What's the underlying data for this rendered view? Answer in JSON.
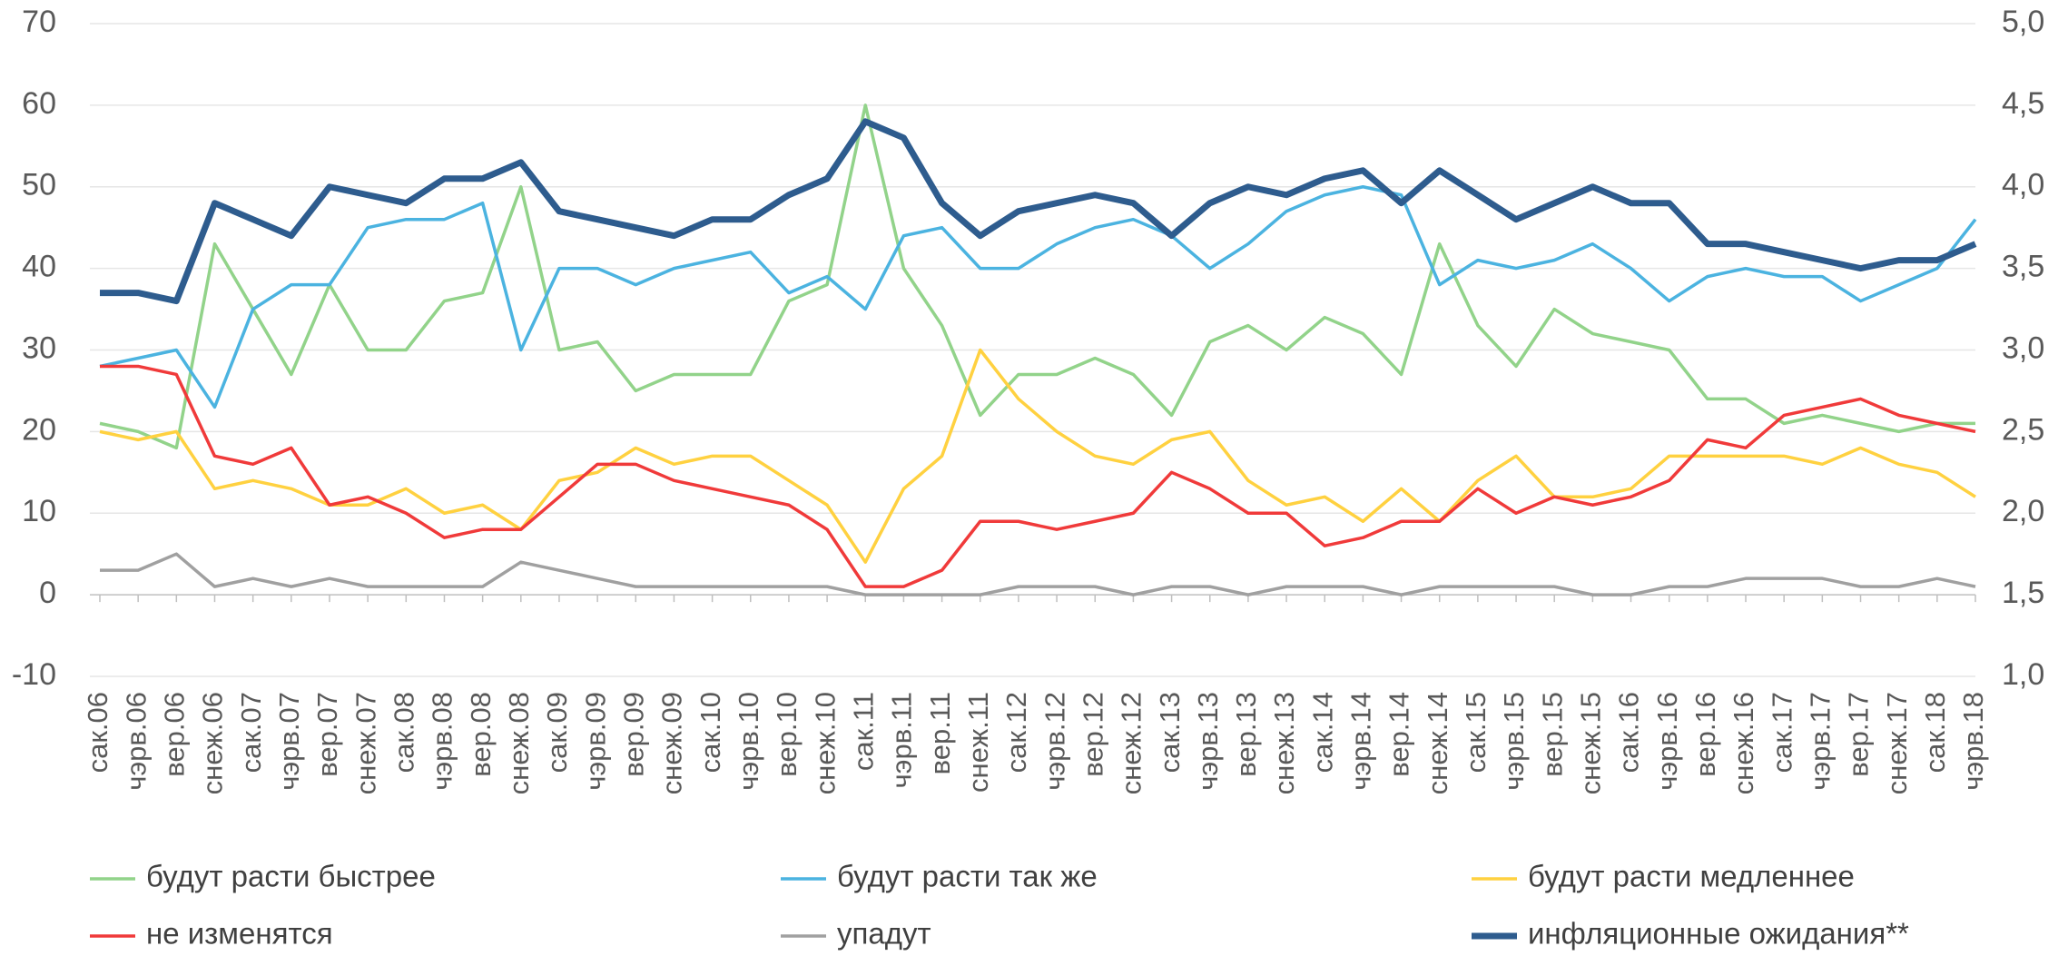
{
  "chart_data": {
    "type": "line",
    "categories": [
      "сак.06",
      "чэрв.06",
      "вер.06",
      "снеж.06",
      "сак.07",
      "чэрв.07",
      "вер.07",
      "снеж.07",
      "сак.08",
      "чэрв.08",
      "вер.08",
      "снеж.08",
      "сак.09",
      "чэрв.09",
      "вер.09",
      "снеж.09",
      "сак.10",
      "чэрв.10",
      "вер.10",
      "снеж.10",
      "сак.11",
      "чэрв.11",
      "вер.11",
      "снеж.11",
      "сак.12",
      "чэрв.12",
      "вер.12",
      "снеж.12",
      "сак.13",
      "чэрв.13",
      "вер.13",
      "снеж.13",
      "сак.14",
      "чэрв.14",
      "вер.14",
      "снеж.14",
      "сак.15",
      "чэрв.15",
      "вер.15",
      "снеж.15",
      "сак.16",
      "чэрв.16",
      "вер.16",
      "снеж.16",
      "сак.17",
      "чэрв.17",
      "вер.17",
      "снеж.17",
      "сак.18",
      "чэрв.18"
    ],
    "series": [
      {
        "name": "будут расти быстрее",
        "color": "#92d38a",
        "values": [
          21,
          20,
          18,
          43,
          35,
          27,
          38,
          30,
          30,
          36,
          37,
          50,
          30,
          31,
          25,
          27,
          27,
          27,
          36,
          38,
          60,
          40,
          33,
          22,
          27,
          27,
          29,
          27,
          22,
          31,
          33,
          30,
          34,
          32,
          27,
          43,
          33,
          28,
          35,
          32,
          31,
          30,
          24,
          24,
          21,
          22,
          21,
          20,
          21,
          21
        ]
      },
      {
        "name": "будут расти так же",
        "color": "#4bb3e0",
        "values": [
          28,
          29,
          30,
          23,
          35,
          38,
          38,
          45,
          46,
          46,
          48,
          30,
          40,
          40,
          38,
          40,
          41,
          42,
          37,
          39,
          35,
          44,
          45,
          40,
          40,
          43,
          45,
          46,
          44,
          40,
          43,
          47,
          49,
          50,
          49,
          38,
          41,
          40,
          41,
          43,
          40,
          36,
          39,
          40,
          39,
          39,
          36,
          38,
          40,
          46
        ]
      },
      {
        "name": "будут расти медленнее",
        "color": "#ffd140",
        "values": [
          20,
          19,
          20,
          13,
          14,
          13,
          11,
          11,
          13,
          10,
          11,
          8,
          14,
          15,
          18,
          16,
          17,
          17,
          14,
          11,
          4,
          13,
          17,
          30,
          24,
          20,
          17,
          16,
          19,
          20,
          14,
          11,
          12,
          9,
          13,
          9,
          14,
          17,
          12,
          12,
          13,
          17,
          17,
          17,
          17,
          16,
          18,
          16,
          15,
          12
        ]
      },
      {
        "name": "не изменятся",
        "color": "#f03a3a",
        "values": [
          28,
          28,
          27,
          17,
          16,
          18,
          11,
          12,
          10,
          7,
          8,
          8,
          12,
          16,
          16,
          14,
          13,
          12,
          11,
          8,
          1,
          1,
          3,
          9,
          9,
          8,
          9,
          10,
          15,
          13,
          10,
          10,
          6,
          7,
          9,
          9,
          13,
          10,
          12,
          11,
          12,
          14,
          19,
          18,
          22,
          23,
          24,
          22,
          21,
          20
        ]
      },
      {
        "name": "упадут",
        "color": "#a0a0a0",
        "values": [
          3,
          3,
          5,
          1,
          2,
          1,
          2,
          1,
          1,
          1,
          1,
          4,
          3,
          2,
          1,
          1,
          1,
          1,
          1,
          1,
          0,
          0,
          0,
          0,
          1,
          1,
          1,
          0,
          1,
          1,
          0,
          1,
          1,
          1,
          0,
          1,
          1,
          1,
          1,
          0,
          0,
          1,
          1,
          2,
          2,
          2,
          1,
          1,
          2,
          1
        ]
      },
      {
        "name": "инфляционные ожидания**",
        "color": "#2e5c8e",
        "axis": "y2",
        "values": [
          3.35,
          3.35,
          3.3,
          3.9,
          3.8,
          3.7,
          4.0,
          3.95,
          3.9,
          4.05,
          4.05,
          4.15,
          3.85,
          3.8,
          3.75,
          3.7,
          3.8,
          3.8,
          3.95,
          4.05,
          4.4,
          4.3,
          3.9,
          3.7,
          3.85,
          3.9,
          3.95,
          3.9,
          3.7,
          3.9,
          4.0,
          3.95,
          4.05,
          4.1,
          3.9,
          4.1,
          3.95,
          3.8,
          3.9,
          4.0,
          3.9,
          3.9,
          3.65,
          3.65,
          3.6,
          3.55,
          3.5,
          3.55,
          3.55,
          3.65
        ]
      }
    ],
    "ylim": [
      -10,
      70
    ],
    "yticks": [
      -10,
      0,
      10,
      20,
      30,
      40,
      50,
      60,
      70
    ],
    "y2lim": [
      1.0,
      5.0
    ],
    "y2ticks": [
      {
        "value": 1.0,
        "label": "1,0"
      },
      {
        "value": 1.5,
        "label": "1,5"
      },
      {
        "value": 2.0,
        "label": "2,0"
      },
      {
        "value": 2.5,
        "label": "2,5"
      },
      {
        "value": 3.0,
        "label": "3,0"
      },
      {
        "value": 3.5,
        "label": "3,5"
      },
      {
        "value": 4.0,
        "label": "4,0"
      },
      {
        "value": 4.5,
        "label": "4,5"
      },
      {
        "value": 5.0,
        "label": "5,0"
      }
    ],
    "grid": true
  }
}
